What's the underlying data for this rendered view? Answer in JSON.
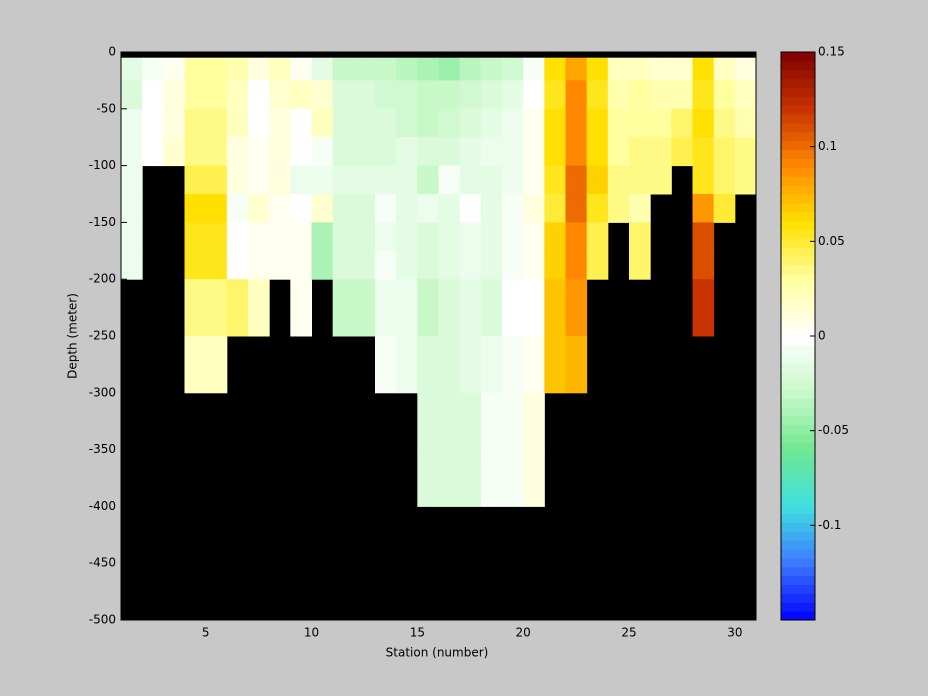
{
  "chart_data": {
    "type": "heatmap",
    "xlabel": "Station (number)",
    "ylabel": "Depth (meter)",
    "x_edges": [
      1,
      2,
      3,
      4,
      5,
      6,
      7,
      8,
      9,
      10,
      11,
      12,
      13,
      14,
      15,
      16,
      17,
      18,
      19,
      20,
      21,
      22,
      23,
      24,
      25,
      26,
      27,
      28,
      29,
      30,
      31
    ],
    "depth_edges": [
      0,
      -5,
      -25,
      -50,
      -75,
      -100,
      -125,
      -150,
      -175,
      -200,
      -250,
      -300,
      -350,
      -400
    ],
    "z": [
      [
        null,
        -0.015,
        -0.02,
        -0.01,
        -0.01,
        -0.01,
        -0.01,
        -0.01,
        -0.01,
        null,
        null,
        null,
        null
      ],
      [
        null,
        -0.005,
        0,
        0,
        0,
        null,
        null,
        null,
        null,
        null,
        null,
        null,
        null
      ],
      [
        null,
        0.005,
        0.01,
        0.01,
        0.015,
        null,
        null,
        null,
        null,
        null,
        null,
        null,
        null
      ],
      [
        null,
        0.03,
        0.03,
        0.035,
        0.035,
        0.045,
        0.06,
        0.055,
        0.055,
        0.035,
        0.02,
        null,
        null
      ],
      [
        null,
        0.03,
        0.03,
        0.035,
        0.035,
        0.045,
        0.06,
        0.055,
        0.055,
        0.035,
        0.02,
        null,
        null
      ],
      [
        null,
        0.025,
        0.02,
        0.02,
        0.01,
        0.01,
        -0.005,
        0,
        0,
        0.04,
        null,
        null,
        null
      ],
      [
        null,
        0.01,
        0,
        0,
        0.005,
        0.005,
        0.015,
        0.005,
        0.005,
        0.02,
        null,
        null,
        null
      ],
      [
        null,
        0.02,
        0.015,
        0.01,
        0.01,
        0.01,
        0.005,
        0.005,
        0.005,
        null,
        null,
        null,
        null
      ],
      [
        null,
        0.005,
        0.02,
        0,
        0,
        -0.01,
        0,
        0.005,
        0.005,
        0.005,
        null,
        null,
        null
      ],
      [
        null,
        -0.015,
        0.015,
        0.02,
        -0.005,
        -0.01,
        0.015,
        -0.04,
        -0.04,
        null,
        null,
        null,
        null
      ],
      [
        null,
        -0.03,
        -0.02,
        -0.02,
        -0.02,
        -0.015,
        -0.02,
        -0.02,
        -0.02,
        -0.03,
        null,
        null,
        null
      ],
      [
        null,
        -0.03,
        -0.02,
        -0.02,
        -0.02,
        -0.015,
        -0.02,
        -0.02,
        -0.02,
        -0.03,
        null,
        null,
        null
      ],
      [
        null,
        -0.03,
        -0.025,
        -0.02,
        -0.02,
        -0.015,
        -0.005,
        -0.01,
        -0.005,
        -0.01,
        -0.005,
        null,
        null
      ],
      [
        null,
        -0.035,
        -0.025,
        -0.025,
        -0.015,
        -0.015,
        -0.015,
        -0.015,
        -0.015,
        -0.01,
        -0.01,
        null,
        null
      ],
      [
        null,
        -0.04,
        -0.03,
        -0.03,
        -0.02,
        -0.03,
        -0.01,
        -0.02,
        -0.02,
        -0.03,
        -0.02,
        -0.02,
        -0.02
      ],
      [
        null,
        -0.045,
        -0.03,
        -0.025,
        -0.02,
        -0.005,
        -0.015,
        -0.015,
        -0.015,
        -0.02,
        -0.02,
        -0.02,
        -0.02
      ],
      [
        null,
        -0.035,
        -0.025,
        -0.02,
        -0.015,
        -0.015,
        0,
        -0.01,
        -0.01,
        -0.015,
        -0.015,
        -0.02,
        -0.02
      ],
      [
        null,
        -0.03,
        -0.02,
        -0.015,
        -0.01,
        -0.015,
        -0.015,
        -0.015,
        -0.015,
        -0.02,
        -0.01,
        -0.005,
        -0.005
      ],
      [
        null,
        -0.025,
        -0.015,
        -0.01,
        -0.01,
        -0.01,
        -0.005,
        -0.005,
        -0.005,
        0,
        -0.005,
        -0.005,
        -0.005
      ],
      [
        null,
        -0.005,
        0,
        0.005,
        0.005,
        0.005,
        0.01,
        0.005,
        0.005,
        0,
        0.005,
        0.01,
        0.01
      ],
      [
        null,
        0.06,
        0.055,
        0.06,
        0.06,
        0.055,
        0.05,
        0.065,
        0.065,
        0.07,
        0.07,
        null,
        null
      ],
      [
        null,
        0.08,
        0.09,
        0.09,
        0.09,
        0.1,
        0.1,
        0.09,
        0.09,
        0.085,
        0.075,
        null,
        null
      ],
      [
        null,
        0.06,
        0.055,
        0.06,
        0.06,
        0.065,
        0.055,
        0.045,
        0.045,
        null,
        null,
        null,
        null
      ],
      [
        null,
        0.02,
        0.025,
        0.03,
        0.03,
        0.035,
        0.035,
        null,
        null,
        null,
        null,
        null,
        null
      ],
      [
        null,
        0.02,
        0.03,
        0.03,
        0.035,
        0.035,
        0.025,
        0.04,
        0.04,
        null,
        null,
        null,
        null
      ],
      [
        null,
        0.015,
        0.025,
        0.03,
        0.035,
        0.035,
        null,
        null,
        null,
        null,
        null,
        null,
        null
      ],
      [
        null,
        0.015,
        0.025,
        0.04,
        0.045,
        null,
        null,
        null,
        null,
        null,
        null,
        null,
        null
      ],
      [
        null,
        0.06,
        0.055,
        0.06,
        0.055,
        0.055,
        0.085,
        0.11,
        0.11,
        0.12,
        null,
        null,
        null
      ],
      [
        null,
        0.02,
        0.03,
        0.035,
        0.04,
        0.04,
        0.05,
        null,
        null,
        null,
        null,
        null,
        null
      ],
      [
        null,
        0.01,
        0.02,
        0.025,
        0.035,
        0.035,
        null,
        null,
        null,
        null,
        null,
        null,
        null
      ]
    ],
    "xlim": [
      1,
      31
    ],
    "xticks": [
      5,
      10,
      15,
      20,
      25,
      30
    ],
    "ylim": [
      -500,
      0
    ],
    "yticks": [
      0,
      -50,
      -100,
      -150,
      -200,
      -250,
      -300,
      -350,
      -400,
      -450,
      -500
    ],
    "clim": [
      -0.15,
      0.15
    ],
    "cticks": [
      0.15,
      0.1,
      0.05,
      0,
      -0.05,
      -0.1
    ],
    "colormap": [
      "#0000ff",
      "#3c78ff",
      "#40e0e0",
      "#70e890",
      "#c8f8c8",
      "#ffffff",
      "#ffffa0",
      "#ffe000",
      "#ff8800",
      "#c83200",
      "#800000"
    ],
    "nan_color": "#000000"
  }
}
